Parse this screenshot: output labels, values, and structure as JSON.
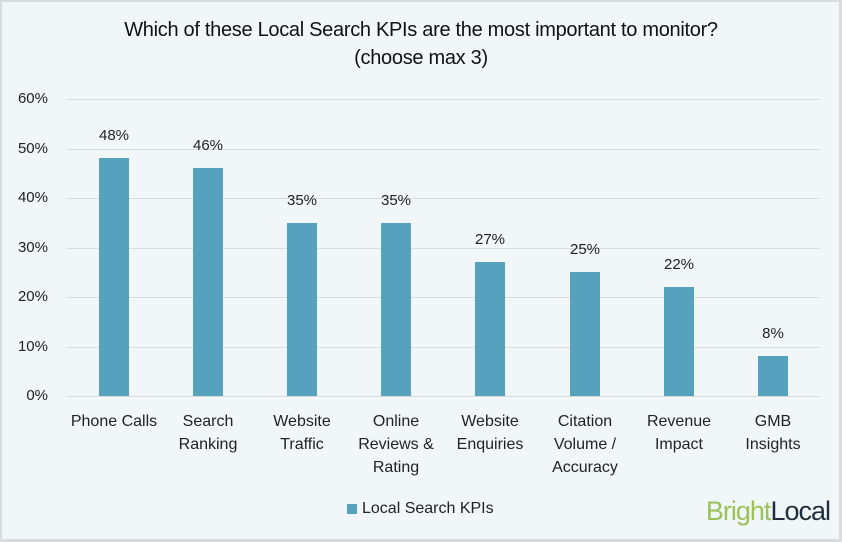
{
  "chart_data": {
    "type": "bar",
    "title": "Which of these Local Search KPIs are the most important to monitor?",
    "subtitle": "(choose max 3)",
    "categories": [
      "Phone Calls",
      "Search Ranking",
      "Website Traffic",
      "Online Reviews & Rating",
      "Website Enquiries",
      "Citation Volume / Accuracy",
      "Revenue Impact",
      "GMB Insights"
    ],
    "category_lines": [
      [
        "Phone Calls"
      ],
      [
        "Search",
        "Ranking"
      ],
      [
        "Website",
        "Traffic"
      ],
      [
        "Online",
        "Reviews &",
        "Rating"
      ],
      [
        "Website",
        "Enquiries"
      ],
      [
        "Citation",
        "Volume /",
        "Accuracy"
      ],
      [
        "Revenue",
        "Impact"
      ],
      [
        "GMB",
        "Insights"
      ]
    ],
    "series": [
      {
        "name": "Local Search KPIs",
        "values": [
          48,
          46,
          35,
          35,
          27,
          25,
          22,
          8
        ],
        "color": "#56a1bd"
      }
    ],
    "value_labels": [
      "48%",
      "46%",
      "35%",
      "35%",
      "27%",
      "25%",
      "22%",
      "8%"
    ],
    "xlabel": "",
    "ylabel": "",
    "ylim": [
      0,
      60
    ],
    "yticks": [
      "0%",
      "10%",
      "20%",
      "30%",
      "40%",
      "50%",
      "60%"
    ],
    "grid": true,
    "legend_position": "bottom"
  },
  "brand": {
    "part1": "Bright",
    "part2": "Local",
    "color1": "#9ac256",
    "color2": "#1f2d3d"
  }
}
